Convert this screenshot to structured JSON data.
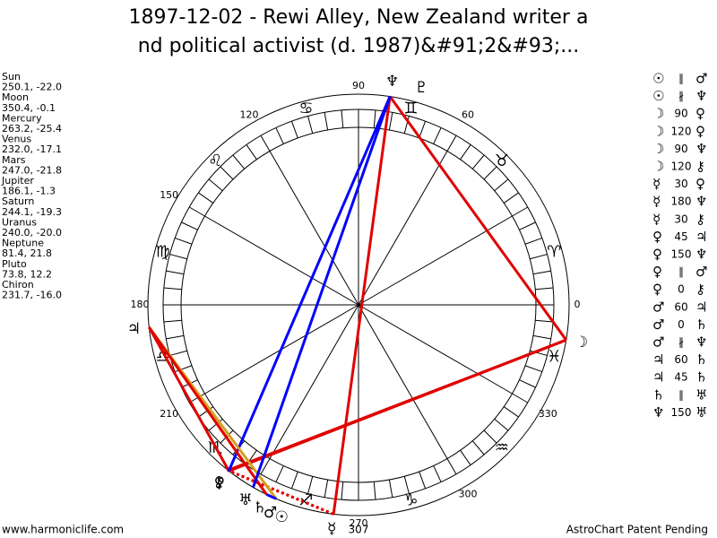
{
  "title_lines": [
    "1897-12-02 - Rewi Alley, New Zealand writer a",
    "nd political activist (d. 1987)&#91;2&#93;..."
  ],
  "planets": [
    {
      "name": "Sun",
      "glyph": "☉",
      "text": "250.1, -22.0",
      "lon": 250.1
    },
    {
      "name": "Moon",
      "glyph": "☽",
      "text": "350.4, -0.1",
      "lon": 350.4
    },
    {
      "name": "Mercury",
      "glyph": "☿",
      "text": "263.2, -25.4",
      "lon": 263.2
    },
    {
      "name": "Venus",
      "glyph": "♀",
      "text": "232.0, -17.1",
      "lon": 232.0
    },
    {
      "name": "Mars",
      "glyph": "♂",
      "text": "247.0, -21.8",
      "lon": 247.0
    },
    {
      "name": "Jupiter",
      "glyph": "♃",
      "text": "186.1, -1.3",
      "lon": 186.1
    },
    {
      "name": "Saturn",
      "glyph": "♄",
      "text": "244.1, -19.3",
      "lon": 244.1
    },
    {
      "name": "Uranus",
      "glyph": "♅",
      "text": "240.0, -20.0",
      "lon": 240.0
    },
    {
      "name": "Neptune",
      "glyph": "♆",
      "text": "81.4, 21.8",
      "lon": 81.4
    },
    {
      "name": "Pluto",
      "glyph": "♇",
      "text": "73.8, 12.2",
      "lon": 73.8
    },
    {
      "name": "Chiron",
      "glyph": "⚷",
      "text": "231.7, -16.0",
      "lon": 231.7
    }
  ],
  "signs": [
    "♈",
    "♉",
    "♊",
    "♋",
    "♌",
    "♍",
    "♎",
    "♏",
    "♐",
    "♑",
    "♒",
    "♓"
  ],
  "degree_labels": [
    0,
    60,
    90,
    120,
    150,
    180,
    210,
    270,
    300,
    330
  ],
  "extra_label": "307",
  "aspects": [
    {
      "a": "☉",
      "type": "∥",
      "b": "♂"
    },
    {
      "a": "☉",
      "type": "∦",
      "b": "♆"
    },
    {
      "a": "☽",
      "type": "90",
      "b": "♀"
    },
    {
      "a": "☽",
      "type": "120",
      "b": "♀"
    },
    {
      "a": "☽",
      "type": "90",
      "b": "♆"
    },
    {
      "a": "☽",
      "type": "120",
      "b": "⚷"
    },
    {
      "a": "☿",
      "type": "30",
      "b": "♀"
    },
    {
      "a": "☿",
      "type": "180",
      "b": "♆"
    },
    {
      "a": "☿",
      "type": "30",
      "b": "⚷"
    },
    {
      "a": "♀",
      "type": "45",
      "b": "♃"
    },
    {
      "a": "♀",
      "type": "150",
      "b": "♆"
    },
    {
      "a": "♀",
      "type": "∥",
      "b": "♂"
    },
    {
      "a": "♀",
      "type": "0",
      "b": "⚷"
    },
    {
      "a": "♂",
      "type": "60",
      "b": "♃"
    },
    {
      "a": "♂",
      "type": "0",
      "b": "♄"
    },
    {
      "a": "♂",
      "type": "∦",
      "b": "♆"
    },
    {
      "a": "♃",
      "type": "60",
      "b": "♄"
    },
    {
      "a": "♃",
      "type": "45",
      "b": "♄"
    },
    {
      "a": "♄",
      "type": "∥",
      "b": "♅"
    },
    {
      "a": "♆",
      "type": "150",
      "b": "♅"
    }
  ],
  "aspect_colors": {
    "0": "#0000ff",
    "30": "#e00000",
    "45": "#e00000",
    "60": "#d4a020",
    "90": "#e00000",
    "120": "#e00000",
    "150": "#0000ff",
    "180": "#e00000"
  },
  "dashed_aspects": [
    "30"
  ],
  "footer_left": "www.harmoniclife.com",
  "footer_right": "AstroChart Patent Pending"
}
